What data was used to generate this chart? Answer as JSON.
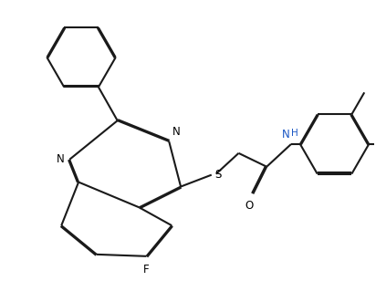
{
  "background_color": "#ffffff",
  "bond_color": "#1a1a1a",
  "lw": 1.5,
  "dbo": 0.012,
  "figsize": [
    4.12,
    3.08
  ],
  "dpi": 100,
  "xlim": [
    0,
    4.12
  ],
  "ylim": [
    0,
    3.08
  ]
}
